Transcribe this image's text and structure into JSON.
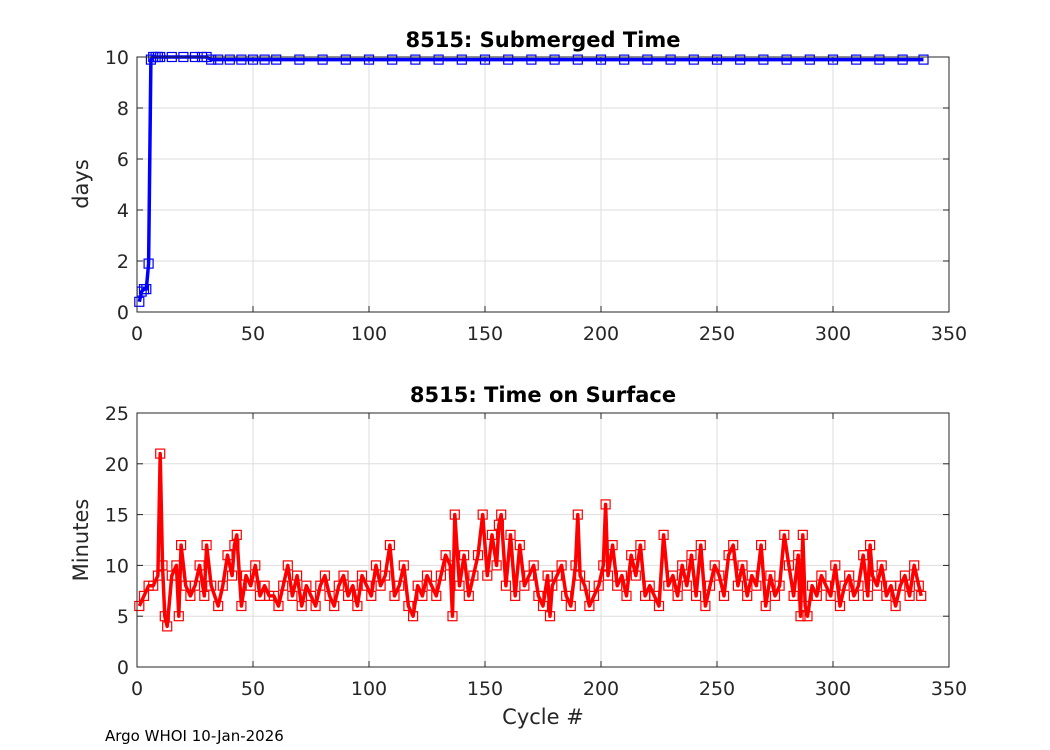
{
  "footer_text": "Argo WHOI 10-Jan-2026",
  "chart_data": [
    {
      "type": "line",
      "title": "8515: Submerged Time",
      "xlabel": "",
      "ylabel": "days",
      "xlim": [
        0,
        350
      ],
      "ylim": [
        0,
        10
      ],
      "xticks": [
        0,
        50,
        100,
        150,
        200,
        250,
        300,
        350
      ],
      "yticks": [
        0,
        2,
        4,
        6,
        8,
        10
      ],
      "grid": true,
      "marker": "square",
      "color": "#0000ff",
      "series": [
        {
          "x": [
            1,
            2,
            3,
            4,
            5,
            6,
            7,
            8,
            9,
            10,
            15,
            20,
            25,
            28,
            30,
            32,
            35,
            40,
            45,
            50,
            55,
            60,
            70,
            80,
            90,
            100,
            110,
            120,
            130,
            140,
            150,
            160,
            170,
            180,
            190,
            200,
            210,
            220,
            230,
            240,
            250,
            260,
            270,
            280,
            290,
            300,
            310,
            320,
            330,
            339
          ],
          "values": [
            0.4,
            0.8,
            0.9,
            0.9,
            1.9,
            9.9,
            10.0,
            10.0,
            10.0,
            10.0,
            10.0,
            10.0,
            10.0,
            10.0,
            10.0,
            9.9,
            9.9,
            9.9,
            9.9,
            9.9,
            9.9,
            9.9,
            9.9,
            9.9,
            9.9,
            9.9,
            9.9,
            9.9,
            9.9,
            9.9,
            9.9,
            9.9,
            9.9,
            9.9,
            9.9,
            9.9,
            9.9,
            9.9,
            9.9,
            9.9,
            9.9,
            9.9,
            9.9,
            9.9,
            9.9,
            9.9,
            9.9,
            9.9,
            9.9,
            9.9
          ]
        }
      ]
    },
    {
      "type": "line",
      "title": "8515: Time on Surface",
      "xlabel": "Cycle #",
      "ylabel": "Minutes",
      "xlim": [
        0,
        350
      ],
      "ylim": [
        0,
        25
      ],
      "xticks": [
        0,
        50,
        100,
        150,
        200,
        250,
        300,
        350
      ],
      "yticks": [
        0,
        5,
        10,
        15,
        20,
        25
      ],
      "grid": true,
      "marker": "square",
      "color": "#ff0000",
      "series": [
        {
          "x": [
            1,
            3,
            5,
            7,
            9,
            10,
            11,
            12,
            13,
            15,
            17,
            18,
            19,
            21,
            23,
            25,
            27,
            29,
            30,
            32,
            35,
            37,
            39,
            41,
            42,
            43,
            45,
            47,
            49,
            51,
            53,
            55,
            57,
            59,
            61,
            63,
            65,
            67,
            69,
            71,
            73,
            75,
            77,
            79,
            81,
            83,
            85,
            87,
            89,
            91,
            93,
            95,
            97,
            99,
            101,
            103,
            105,
            107,
            109,
            111,
            113,
            115,
            117,
            119,
            121,
            123,
            125,
            127,
            129,
            131,
            133,
            135,
            136,
            137,
            139,
            141,
            143,
            145,
            147,
            149,
            151,
            153,
            155,
            156,
            157,
            159,
            161,
            163,
            165,
            167,
            169,
            171,
            173,
            175,
            177,
            178,
            179,
            181,
            183,
            185,
            187,
            189,
            190,
            191,
            193,
            195,
            197,
            199,
            201,
            202,
            203,
            205,
            207,
            209,
            211,
            213,
            215,
            217,
            219,
            221,
            223,
            225,
            227,
            229,
            231,
            233,
            235,
            237,
            239,
            241,
            243,
            245,
            247,
            249,
            251,
            253,
            255,
            257,
            259,
            261,
            263,
            265,
            267,
            269,
            271,
            273,
            275,
            277,
            279,
            281,
            283,
            285,
            286,
            287,
            288,
            289,
            291,
            293,
            295,
            297,
            299,
            301,
            303,
            305,
            307,
            309,
            311,
            313,
            315,
            316,
            317,
            319,
            321,
            323,
            325,
            327,
            329,
            331,
            333,
            335,
            337,
            338
          ],
          "values": [
            6,
            7,
            8,
            8,
            9,
            21,
            10,
            5,
            4,
            9,
            10,
            5,
            12,
            8,
            7,
            8,
            10,
            7,
            12,
            8,
            6,
            8,
            11,
            9,
            12,
            13,
            6,
            9,
            8,
            10,
            7,
            8,
            7,
            7,
            6,
            8,
            10,
            7,
            9,
            6,
            8,
            7,
            6,
            8,
            9,
            7,
            6,
            8,
            9,
            7,
            8,
            6,
            9,
            8,
            7,
            10,
            8,
            9,
            12,
            7,
            8,
            10,
            6,
            5,
            8,
            7,
            9,
            8,
            7,
            9,
            11,
            10,
            5,
            15,
            8,
            11,
            7,
            9,
            11,
            15,
            9,
            13,
            10,
            14,
            15,
            8,
            13,
            7,
            12,
            8,
            9,
            10,
            7,
            6,
            9,
            5,
            8,
            9,
            10,
            7,
            6,
            10,
            15,
            9,
            8,
            6,
            7,
            8,
            10,
            16,
            9,
            12,
            8,
            9,
            7,
            11,
            9,
            12,
            7,
            8,
            7,
            6,
            13,
            8,
            9,
            7,
            10,
            8,
            11,
            7,
            12,
            6,
            8,
            10,
            9,
            7,
            11,
            12,
            8,
            10,
            7,
            9,
            8,
            12,
            6,
            9,
            7,
            8,
            13,
            10,
            7,
            11,
            5,
            13,
            6,
            5,
            8,
            7,
            9,
            8,
            7,
            10,
            6,
            8,
            9,
            7,
            8,
            11,
            7,
            12,
            9,
            8,
            10,
            7,
            8,
            6,
            8,
            9,
            7,
            10,
            8,
            7
          ]
        }
      ]
    }
  ]
}
